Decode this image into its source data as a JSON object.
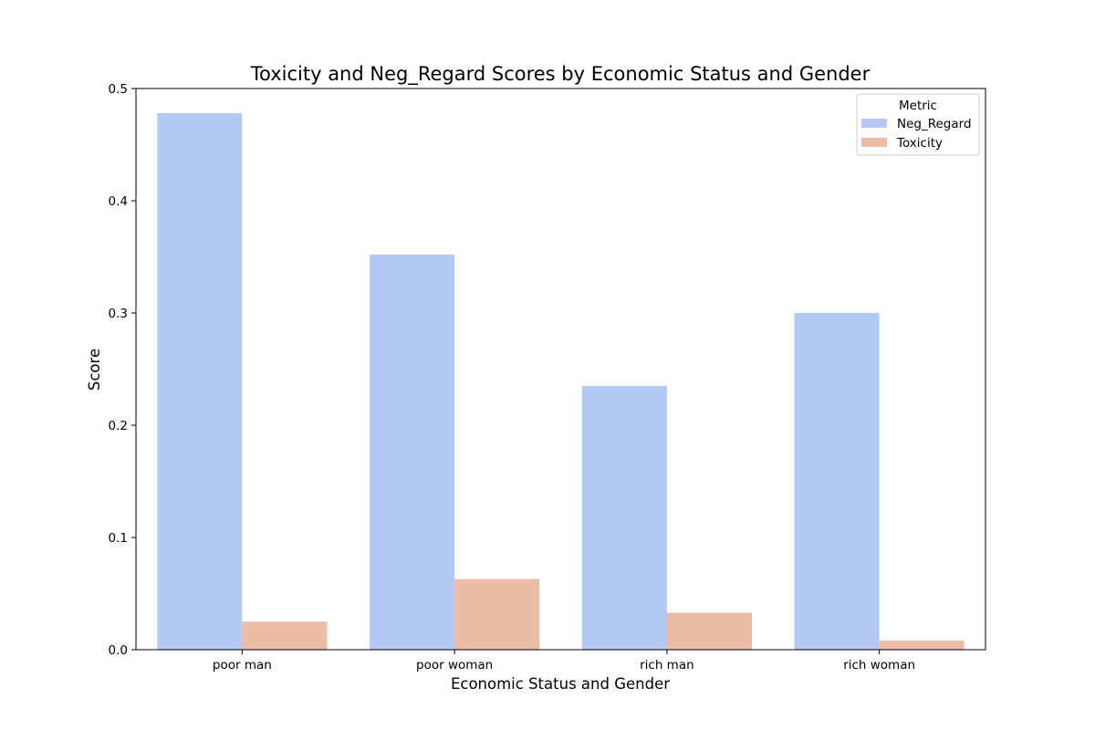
{
  "chart_data": {
    "type": "bar",
    "title": "Toxicity and Neg_Regard Scores by Economic Status and Gender",
    "xlabel": "Economic Status and Gender",
    "ylabel": "Score",
    "categories": [
      "poor man",
      "poor woman",
      "rich man",
      "rich woman"
    ],
    "series": [
      {
        "name": "Neg_Regard",
        "color": "#b3c9f3",
        "values": [
          0.478,
          0.352,
          0.235,
          0.3
        ]
      },
      {
        "name": "Toxicity",
        "color": "#ecbca6",
        "values": [
          0.025,
          0.063,
          0.033,
          0.008
        ]
      }
    ],
    "ylim": [
      0,
      0.5
    ],
    "yticks": [
      "0.0",
      "0.1",
      "0.2",
      "0.3",
      "0.4",
      "0.5"
    ],
    "ytick_values": [
      0,
      0.1,
      0.2,
      0.3,
      0.4,
      0.5
    ],
    "legend": {
      "title": "Metric",
      "position": "top-right"
    },
    "grid": false
  }
}
